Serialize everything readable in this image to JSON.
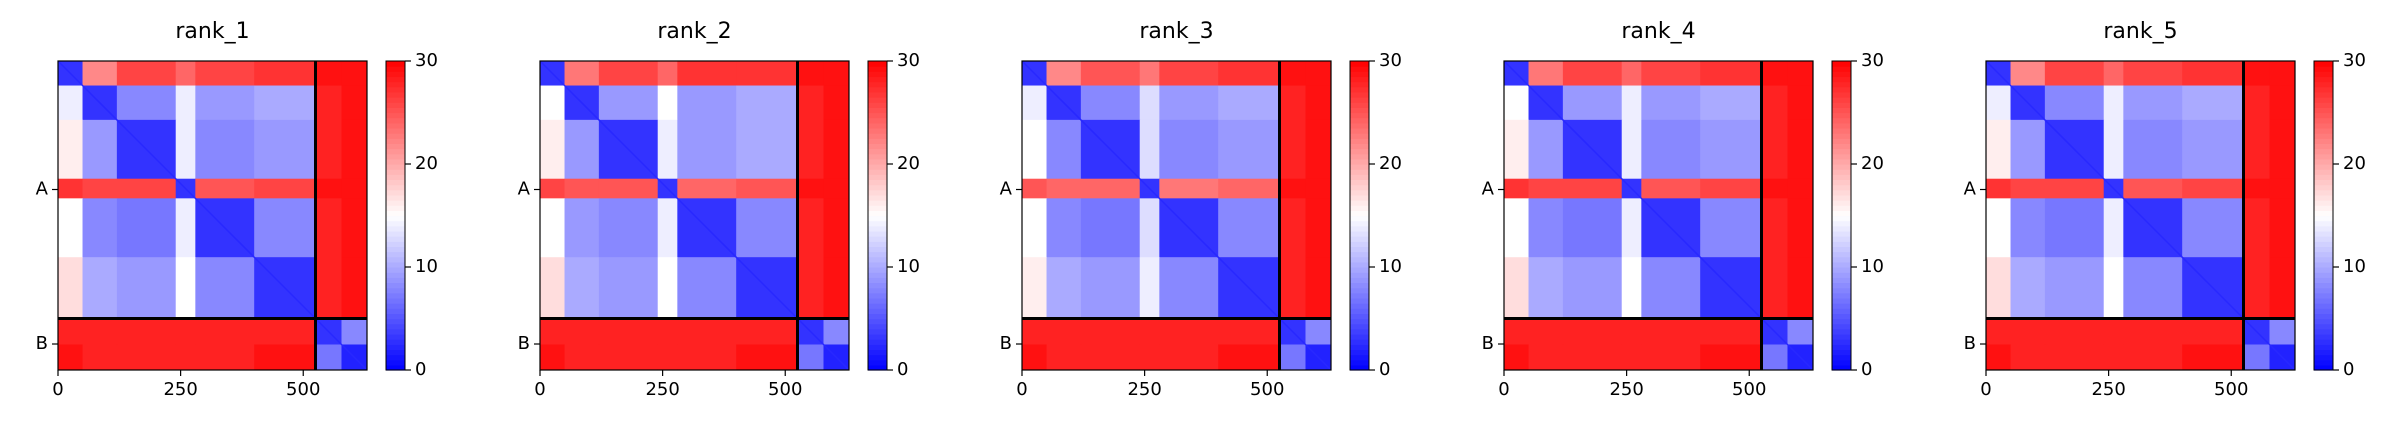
{
  "chart_data": [
    {
      "type": "heatmap",
      "title": "rank_1",
      "colormap": "bwr",
      "x_edges": [
        0,
        50,
        120,
        240,
        280,
        400,
        525,
        578,
        630
      ],
      "z": [
        [
          3,
          22,
          26,
          24,
          26,
          27,
          29,
          29
        ],
        [
          14,
          3,
          8,
          14,
          9,
          10,
          28,
          29
        ],
        [
          16,
          9,
          3,
          14,
          8,
          9,
          28,
          29
        ],
        [
          27,
          26,
          26,
          3,
          25,
          26,
          29,
          29
        ],
        [
          15,
          8,
          7,
          14,
          3,
          8,
          28,
          29
        ],
        [
          17,
          10,
          9,
          15,
          8,
          3,
          28,
          29
        ],
        [
          28,
          28,
          28,
          28,
          28,
          28,
          3,
          8
        ],
        [
          29,
          28,
          28,
          28,
          28,
          29,
          7,
          2
        ]
      ],
      "xlim": [
        0,
        630
      ],
      "ylim": [
        630,
        0
      ],
      "xticks": [
        0,
        250,
        500
      ],
      "yticks": [
        {
          "value": 262,
          "label": "A"
        },
        {
          "value": 577,
          "label": "B"
        }
      ],
      "clim": [
        0,
        30
      ],
      "cticks": [
        0,
        10,
        20,
        30
      ],
      "chain_breaks": [
        525
      ]
    },
    {
      "type": "heatmap",
      "title": "rank_2",
      "colormap": "bwr",
      "x_edges": [
        0,
        50,
        120,
        240,
        280,
        400,
        525,
        578,
        630
      ],
      "z": [
        [
          3,
          23,
          26,
          24,
          27,
          27,
          29,
          29
        ],
        [
          15,
          3,
          9,
          15,
          9,
          10,
          28,
          29
        ],
        [
          16,
          9,
          3,
          14,
          9,
          10,
          28,
          29
        ],
        [
          26,
          25,
          25,
          3,
          24,
          25,
          29,
          29
        ],
        [
          15,
          9,
          8,
          14,
          3,
          8,
          28,
          29
        ],
        [
          17,
          10,
          9,
          15,
          8,
          3,
          28,
          29
        ],
        [
          28,
          28,
          28,
          28,
          28,
          28,
          3,
          8
        ],
        [
          29,
          28,
          28,
          28,
          28,
          29,
          7,
          2
        ]
      ],
      "xlim": [
        0,
        630
      ],
      "ylim": [
        630,
        0
      ],
      "xticks": [
        0,
        250,
        500
      ],
      "yticks": [
        {
          "value": 262,
          "label": "A"
        },
        {
          "value": 577,
          "label": "B"
        }
      ],
      "clim": [
        0,
        30
      ],
      "cticks": [
        0,
        10,
        20,
        30
      ],
      "chain_breaks": [
        525
      ]
    },
    {
      "type": "heatmap",
      "title": "rank_3",
      "colormap": "bwr",
      "x_edges": [
        0,
        50,
        120,
        240,
        280,
        400,
        525,
        578,
        630
      ],
      "z": [
        [
          3,
          22,
          25,
          23,
          26,
          27,
          29,
          29
        ],
        [
          14,
          3,
          8,
          13,
          9,
          10,
          28,
          29
        ],
        [
          15,
          8,
          3,
          13,
          8,
          9,
          28,
          29
        ],
        [
          25,
          24,
          24,
          3,
          23,
          24,
          29,
          29
        ],
        [
          15,
          8,
          7,
          13,
          3,
          8,
          28,
          29
        ],
        [
          16,
          10,
          9,
          14,
          8,
          3,
          28,
          29
        ],
        [
          28,
          28,
          28,
          28,
          28,
          28,
          3,
          8
        ],
        [
          29,
          28,
          28,
          28,
          28,
          29,
          7,
          2
        ]
      ],
      "xlim": [
        0,
        630
      ],
      "ylim": [
        630,
        0
      ],
      "xticks": [
        0,
        250,
        500
      ],
      "yticks": [
        {
          "value": 262,
          "label": "A"
        },
        {
          "value": 577,
          "label": "B"
        }
      ],
      "clim": [
        0,
        30
      ],
      "cticks": [
        0,
        10,
        20,
        30
      ],
      "chain_breaks": [
        525
      ]
    },
    {
      "type": "heatmap",
      "title": "rank_4",
      "colormap": "bwr",
      "x_edges": [
        0,
        50,
        120,
        240,
        280,
        400,
        525,
        578,
        630
      ],
      "z": [
        [
          3,
          23,
          26,
          24,
          26,
          27,
          29,
          29
        ],
        [
          15,
          3,
          9,
          14,
          9,
          10,
          28,
          29
        ],
        [
          16,
          9,
          3,
          14,
          8,
          9,
          28,
          29
        ],
        [
          27,
          26,
          26,
          3,
          25,
          26,
          29,
          29
        ],
        [
          15,
          8,
          7,
          14,
          3,
          8,
          28,
          29
        ],
        [
          17,
          10,
          9,
          15,
          8,
          3,
          28,
          29
        ],
        [
          28,
          28,
          28,
          28,
          28,
          28,
          3,
          8
        ],
        [
          29,
          28,
          28,
          28,
          28,
          29,
          7,
          2
        ]
      ],
      "xlim": [
        0,
        630
      ],
      "ylim": [
        630,
        0
      ],
      "xticks": [
        0,
        250,
        500
      ],
      "yticks": [
        {
          "value": 262,
          "label": "A"
        },
        {
          "value": 577,
          "label": "B"
        }
      ],
      "clim": [
        0,
        30
      ],
      "cticks": [
        0,
        10,
        20,
        30
      ],
      "chain_breaks": [
        525
      ]
    },
    {
      "type": "heatmap",
      "title": "rank_5",
      "colormap": "bwr",
      "x_edges": [
        0,
        50,
        120,
        240,
        280,
        400,
        525,
        578,
        630
      ],
      "z": [
        [
          3,
          22,
          26,
          24,
          26,
          27,
          29,
          29
        ],
        [
          14,
          3,
          8,
          14,
          9,
          10,
          28,
          29
        ],
        [
          16,
          9,
          3,
          14,
          8,
          9,
          28,
          29
        ],
        [
          27,
          26,
          26,
          3,
          25,
          26,
          29,
          29
        ],
        [
          15,
          8,
          7,
          14,
          3,
          8,
          28,
          29
        ],
        [
          17,
          10,
          9,
          15,
          8,
          3,
          28,
          29
        ],
        [
          28,
          28,
          28,
          28,
          28,
          28,
          3,
          8
        ],
        [
          29,
          28,
          28,
          28,
          28,
          29,
          7,
          2
        ]
      ],
      "xlim": [
        0,
        630
      ],
      "ylim": [
        630,
        0
      ],
      "xticks": [
        0,
        250,
        500
      ],
      "yticks": [
        {
          "value": 262,
          "label": "A"
        },
        {
          "value": 577,
          "label": "B"
        }
      ],
      "clim": [
        0,
        30
      ],
      "cticks": [
        0,
        10,
        20,
        30
      ],
      "chain_breaks": [
        525
      ]
    }
  ]
}
